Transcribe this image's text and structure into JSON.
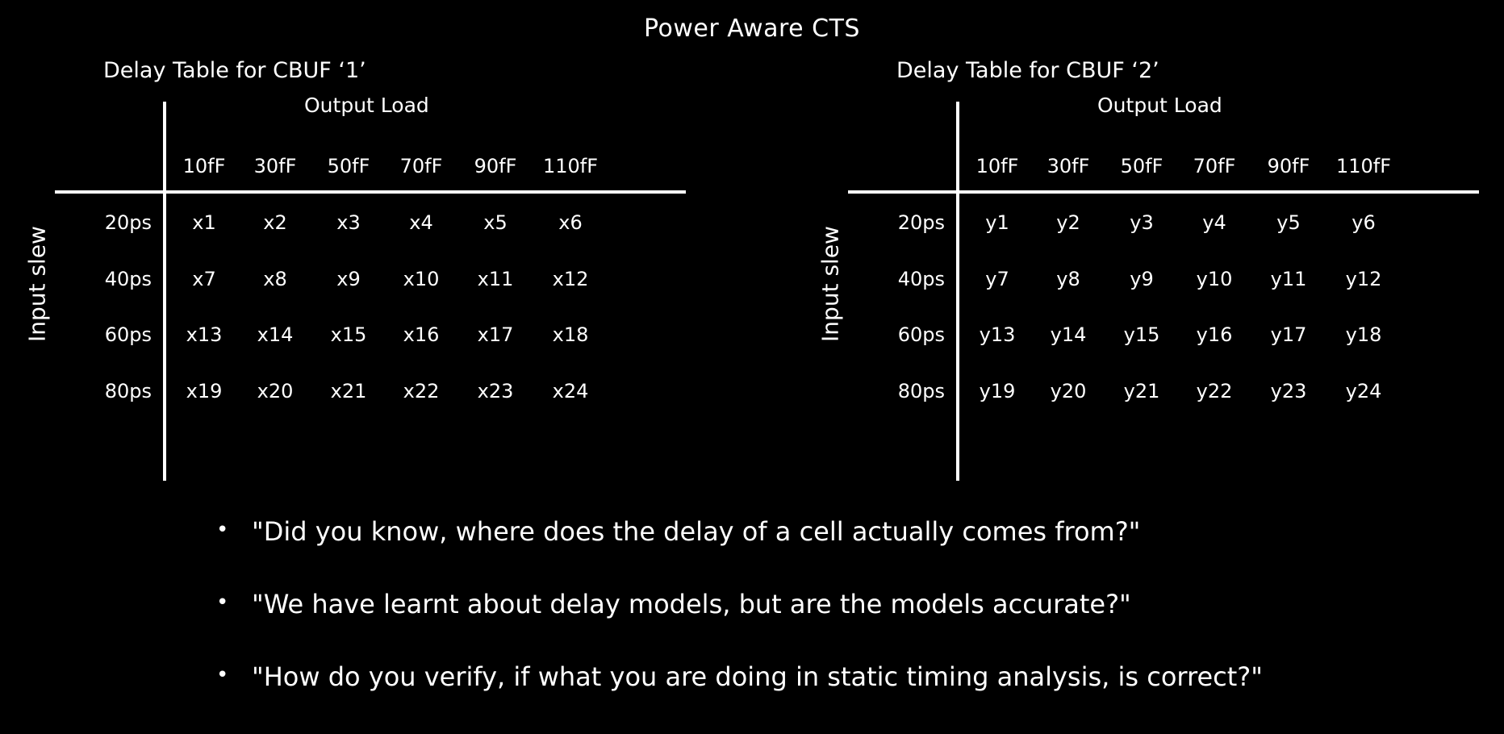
{
  "title": "Power Aware CTS",
  "tables": [
    {
      "title": "Delay Table for CBUF ‘1’",
      "column_header": "Output Load",
      "row_header": "Input slew",
      "loads": [
        "10fF",
        "30fF",
        "50fF",
        "70fF",
        "90fF",
        "110fF"
      ],
      "slews": [
        "20ps",
        "40ps",
        "60ps",
        "80ps"
      ],
      "cells": [
        [
          "x1",
          "x2",
          "x3",
          "x4",
          "x5",
          "x6"
        ],
        [
          "x7",
          "x8",
          "x9",
          "x10",
          "x11",
          "x12"
        ],
        [
          "x13",
          "x14",
          "x15",
          "x16",
          "x17",
          "x18"
        ],
        [
          "x19",
          "x20",
          "x21",
          "x22",
          "x23",
          "x24"
        ]
      ]
    },
    {
      "title": "Delay Table for CBUF ‘2’",
      "column_header": "Output Load",
      "row_header": "Input slew",
      "loads": [
        "10fF",
        "30fF",
        "50fF",
        "70fF",
        "90fF",
        "110fF"
      ],
      "slews": [
        "20ps",
        "40ps",
        "60ps",
        "80ps"
      ],
      "cells": [
        [
          "y1",
          "y2",
          "y3",
          "y4",
          "y5",
          "y6"
        ],
        [
          "y7",
          "y8",
          "y9",
          "y10",
          "y11",
          "y12"
        ],
        [
          "y13",
          "y14",
          "y15",
          "y16",
          "y17",
          "y18"
        ],
        [
          "y19",
          "y20",
          "y21",
          "y22",
          "y23",
          "y24"
        ]
      ]
    }
  ],
  "bullets": [
    "\"Did you know, where does the delay of a cell actually comes from?\"",
    "\"We have learnt about delay models, but are the models accurate?\"",
    "\"How do you verify, if what you are doing in static timing analysis, is correct?\""
  ],
  "bullet_symbol": "•"
}
